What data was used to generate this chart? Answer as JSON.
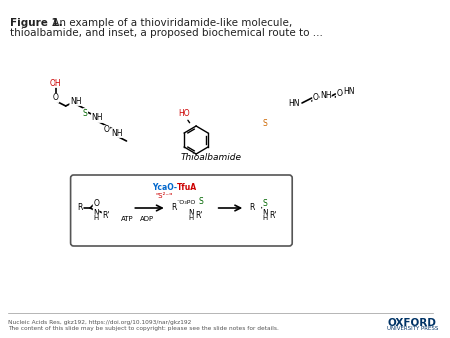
{
  "title_bold": "Figure 1.",
  "title_normal": " An example of a thioviridamide-like molecule,\nthioalbamide, and inset, a proposed biochemical route to ...",
  "molecule_label": "Thioalbamide",
  "footer_left_line1": "Nucleic Acids Res, gkz192, https://doi.org/10.1093/nar/gkz192",
  "footer_left_line2": "The content of this slide may be subject to copyright: please see the slide notes for details.",
  "footer_right_line1": "OXFORD",
  "footer_right_line2": "UNIVERSITY PRESS",
  "bg_color": "#ffffff",
  "text_color": "#222222",
  "red_color": "#cc0000",
  "blue_color": "#0066cc",
  "green_color": "#006600",
  "orange_color": "#cc6600",
  "box_color": "#444444",
  "figsize": [
    4.5,
    3.38
  ],
  "dpi": 100
}
